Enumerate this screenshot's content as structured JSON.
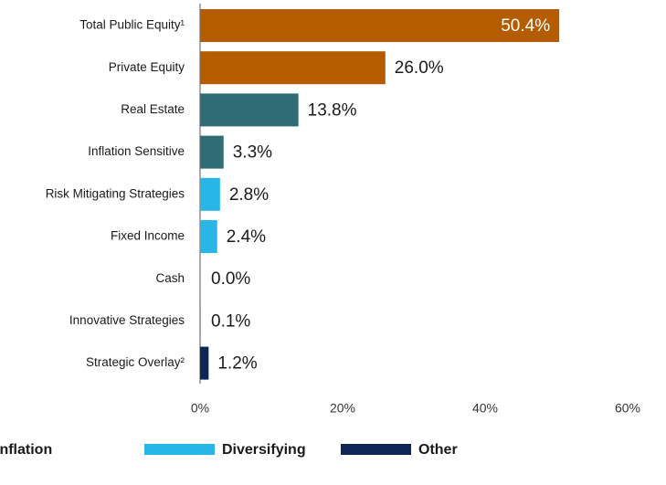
{
  "chart_data": {
    "type": "bar",
    "orientation": "horizontal",
    "categories": [
      "Total Public Equity¹",
      "Private Equity",
      "Real Estate",
      "Inflation Sensitive",
      "Risk Mitigating Strategies",
      "Fixed Income",
      "Cash",
      "Innovative Strategies",
      "Strategic Overlay²"
    ],
    "values": [
      50.4,
      26.0,
      13.8,
      3.3,
      2.8,
      2.4,
      0.0,
      0.1,
      1.2
    ],
    "value_labels": [
      "50.4%",
      "26.0%",
      "13.8%",
      "3.3%",
      "2.8%",
      "2.4%",
      "0.0%",
      "0.1%",
      "1.2%"
    ],
    "colors": [
      "#b65c00",
      "#b65c00",
      "#2f6c74",
      "#2f6c74",
      "#29b5e5",
      "#29b5e5",
      "#0d2557",
      "#8c8c8c",
      "#0d2557"
    ],
    "xlim": [
      0,
      60
    ],
    "xticks": [
      {
        "value": 0,
        "label": "0%"
      },
      {
        "value": 20,
        "label": "20%"
      },
      {
        "value": 40,
        "label": "40%"
      },
      {
        "value": 60,
        "label": "60%"
      }
    ],
    "legend": [
      {
        "name": "Inflation",
        "color": "#2f6c74"
      },
      {
        "name": "Diversifying",
        "color": "#29b5e5"
      },
      {
        "name": "Other",
        "color": "#0d2557"
      }
    ]
  }
}
